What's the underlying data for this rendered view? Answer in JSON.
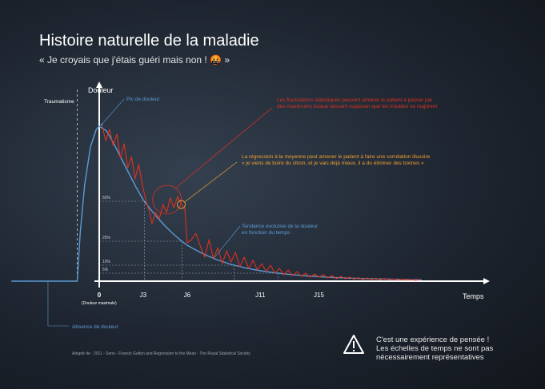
{
  "title": "Histoire naturelle de la maladie",
  "subtitle_text": "« Je croyais que j'étais guéri mais non ! ",
  "subtitle_emoji": "🤬",
  "subtitle_end": " »",
  "source": "Adapté de : 2011 - Senn - Francis Galton and Regression to the Mean - The Royal Statistical Society",
  "caution": {
    "line1": "C'est une expérience de pensée !",
    "line2": "Les échelles de temps ne sont pas",
    "line3": "nécessairement représentatives"
  },
  "colors": {
    "trend": "#5b9bd5",
    "fluctuation": "#e0301e",
    "regression_note": "#f0a030",
    "axis": "#ffffff",
    "guide": "#9aa3ad"
  },
  "chart_data": {
    "type": "line",
    "ylabel": "Douleur",
    "xlabel": "Temps",
    "x_ticks": [
      {
        "label": "0",
        "x": 0
      },
      {
        "label": "J3",
        "x": 3
      },
      {
        "label": "J6",
        "x": 6
      },
      {
        "label": "J11",
        "x": 11
      },
      {
        "label": "J15",
        "x": 15
      }
    ],
    "x_zero_note": "(Douleur maximale)",
    "y_ticks": [
      {
        "label": "50%",
        "y": 50
      },
      {
        "label": "25%",
        "y": 25
      },
      {
        "label": "10%",
        "y": 10
      },
      {
        "label": "5%",
        "y": 5
      }
    ],
    "xlim": [
      -6,
      23
    ],
    "ylim": [
      0,
      110
    ],
    "trauma_x": -1.5,
    "series": [
      {
        "name": "Tendance évolutive de la douleur en fonction du temps",
        "style": "smooth",
        "points": [
          [
            -6,
            0
          ],
          [
            -1.5,
            0
          ],
          [
            -1.3,
            30
          ],
          [
            -1.0,
            60
          ],
          [
            -0.6,
            84
          ],
          [
            -0.2,
            95
          ],
          [
            0,
            97
          ],
          [
            0.5,
            94
          ],
          [
            1,
            86
          ],
          [
            1.5,
            77
          ],
          [
            2,
            68
          ],
          [
            2.5,
            59
          ],
          [
            3,
            51
          ],
          [
            3.5,
            45
          ],
          [
            4,
            39.5
          ],
          [
            4.5,
            34.5
          ],
          [
            5,
            30
          ],
          [
            5.5,
            26
          ],
          [
            6,
            22.5
          ],
          [
            7,
            17.5
          ],
          [
            8,
            13.5
          ],
          [
            9,
            10.5
          ],
          [
            10,
            8.2
          ],
          [
            11,
            6.5
          ],
          [
            12,
            5.2
          ],
          [
            13,
            4.2
          ],
          [
            14,
            3.4
          ],
          [
            15,
            2.8
          ],
          [
            16,
            2.3
          ],
          [
            17,
            1.9
          ],
          [
            18,
            1.6
          ],
          [
            19,
            1.4
          ],
          [
            20,
            1.2
          ],
          [
            21,
            1.0
          ],
          [
            22,
            0.9
          ]
        ]
      },
      {
        "name": "Fluctuations",
        "style": "jagged",
        "points": [
          [
            0.2,
            97
          ],
          [
            0.45,
            88
          ],
          [
            0.7,
            95
          ],
          [
            0.95,
            85
          ],
          [
            1.2,
            92
          ],
          [
            1.45,
            77
          ],
          [
            1.7,
            86
          ],
          [
            1.95,
            71
          ],
          [
            2.2,
            78
          ],
          [
            2.45,
            64
          ],
          [
            2.7,
            73
          ],
          [
            2.95,
            60
          ],
          [
            3.2,
            50
          ],
          [
            3.45,
            43
          ],
          [
            3.6,
            36
          ],
          [
            3.85,
            43
          ],
          [
            4.1,
            39
          ],
          [
            4.35,
            48
          ],
          [
            4.6,
            43
          ],
          [
            4.85,
            52
          ],
          [
            5.1,
            46
          ],
          [
            5.35,
            53
          ],
          [
            5.6,
            48
          ],
          [
            5.85,
            45
          ],
          [
            6.0,
            24
          ],
          [
            6.3,
            26
          ],
          [
            6.6,
            30
          ],
          [
            6.9,
            22
          ],
          [
            7.2,
            15
          ],
          [
            7.5,
            26
          ],
          [
            7.8,
            14
          ],
          [
            8.1,
            21
          ],
          [
            8.4,
            11
          ],
          [
            8.7,
            19
          ],
          [
            9.0,
            12
          ],
          [
            9.3,
            18
          ],
          [
            9.6,
            9
          ],
          [
            9.9,
            15
          ],
          [
            10.2,
            8
          ],
          [
            10.5,
            13
          ],
          [
            10.8,
            7
          ],
          [
            11.1,
            11
          ],
          [
            11.4,
            6
          ],
          [
            11.7,
            10
          ],
          [
            12.0,
            5
          ],
          [
            12.3,
            8
          ],
          [
            12.6,
            4
          ],
          [
            12.9,
            7
          ],
          [
            13.2,
            3.5
          ],
          [
            13.5,
            6
          ],
          [
            13.8,
            3
          ],
          [
            14.1,
            5
          ],
          [
            14.4,
            2.5
          ],
          [
            14.7,
            4.5
          ],
          [
            15.0,
            2.5
          ],
          [
            15.3,
            4
          ],
          [
            15.6,
            2
          ],
          [
            15.9,
            3.5
          ],
          [
            16.2,
            1.5
          ],
          [
            16.5,
            3
          ],
          [
            16.8,
            1.5
          ],
          [
            17.1,
            2.5
          ],
          [
            17.4,
            1.2
          ],
          [
            17.7,
            2.2
          ],
          [
            18.0,
            1
          ],
          [
            18.3,
            2
          ],
          [
            18.6,
            1
          ],
          [
            18.9,
            1.8
          ],
          [
            19.2,
            0.8
          ],
          [
            19.5,
            1.6
          ],
          [
            19.8,
            0.8
          ],
          [
            20.1,
            1.4
          ],
          [
            20.4,
            0.7
          ],
          [
            20.7,
            1.2
          ],
          [
            21.0,
            0.7
          ],
          [
            21.3,
            1.1
          ],
          [
            21.6,
            0.6
          ],
          [
            21.9,
            1.0
          ]
        ]
      }
    ],
    "annotations": [
      {
        "key": "pic",
        "text": "Pic de douleur",
        "x": 0,
        "y": 97,
        "color": "#5b9bd5"
      },
      {
        "key": "absence",
        "text": "Absence de douleur",
        "x": -3.5,
        "y": 0,
        "color": "#5b9bd5"
      },
      {
        "key": "tendance",
        "lines": [
          "Tendance évolutive de la douleur",
          "en fonction du temps"
        ],
        "x": 10,
        "y": 17,
        "color": "#5b9bd5"
      },
      {
        "key": "fluct",
        "lines": [
          "Les fluctuations statistiques peuvent amener le patient à passer par",
          "des maximums locaux laissant supposer que les troubles se majorent"
        ],
        "x": 4.85,
        "y": 52,
        "color": "#e0301e"
      },
      {
        "key": "regression",
        "lines": [
          "La régression à la moyenne peut amener le patient à faire une corrélation illusoire",
          "« je viens de boire du citron, et je vais déjà mieux, il a du éliminer des toxines »"
        ],
        "x": 5.6,
        "y": 48,
        "color": "#f0a030"
      },
      {
        "key": "traumatisme",
        "text": "Traumatisme",
        "x": -1.5,
        "y": 105,
        "color": "#ffffff"
      }
    ]
  }
}
